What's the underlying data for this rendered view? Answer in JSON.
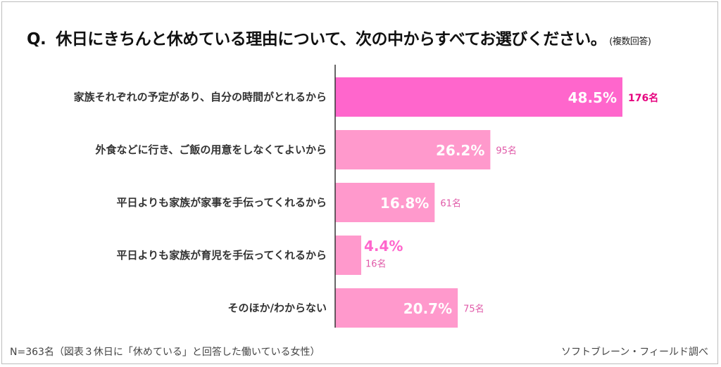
{
  "question": {
    "prefix": "Q.",
    "text": "休日にきちんと休めている理由について、次の中からすべてお選びください。",
    "note": "(複数回答)"
  },
  "footer": {
    "sample": "N=363名（図表３休日に「休めている」と回答した働いている女性）",
    "source": "ソフトブレーン・フィールド調べ"
  },
  "colors": {
    "highlight": "#ff66cc",
    "bar": "#ff99cc",
    "highlight_count": "#e6007e",
    "count": "#e05aa8",
    "axis": "#333333"
  },
  "chart_data": {
    "type": "bar",
    "orientation": "horizontal",
    "categories": [
      "家族それぞれの予定があり、自分の時間がとれるから",
      "外食などに行き、ご飯の用意をしなくてよいから",
      "平日よりも家族が家事を手伝ってくれるから",
      "平日よりも家族が育児を手伝ってくれるから",
      "そのほか/わからない"
    ],
    "values": [
      48.5,
      26.2,
      16.8,
      4.4,
      20.7
    ],
    "value_labels": [
      "48.5%",
      "26.2%",
      "16.8%",
      "4.4%",
      "20.7%"
    ],
    "counts": [
      "176名",
      "95名",
      "61名",
      "16名",
      "75名"
    ],
    "xlim": [
      0,
      50
    ],
    "grid": false
  }
}
